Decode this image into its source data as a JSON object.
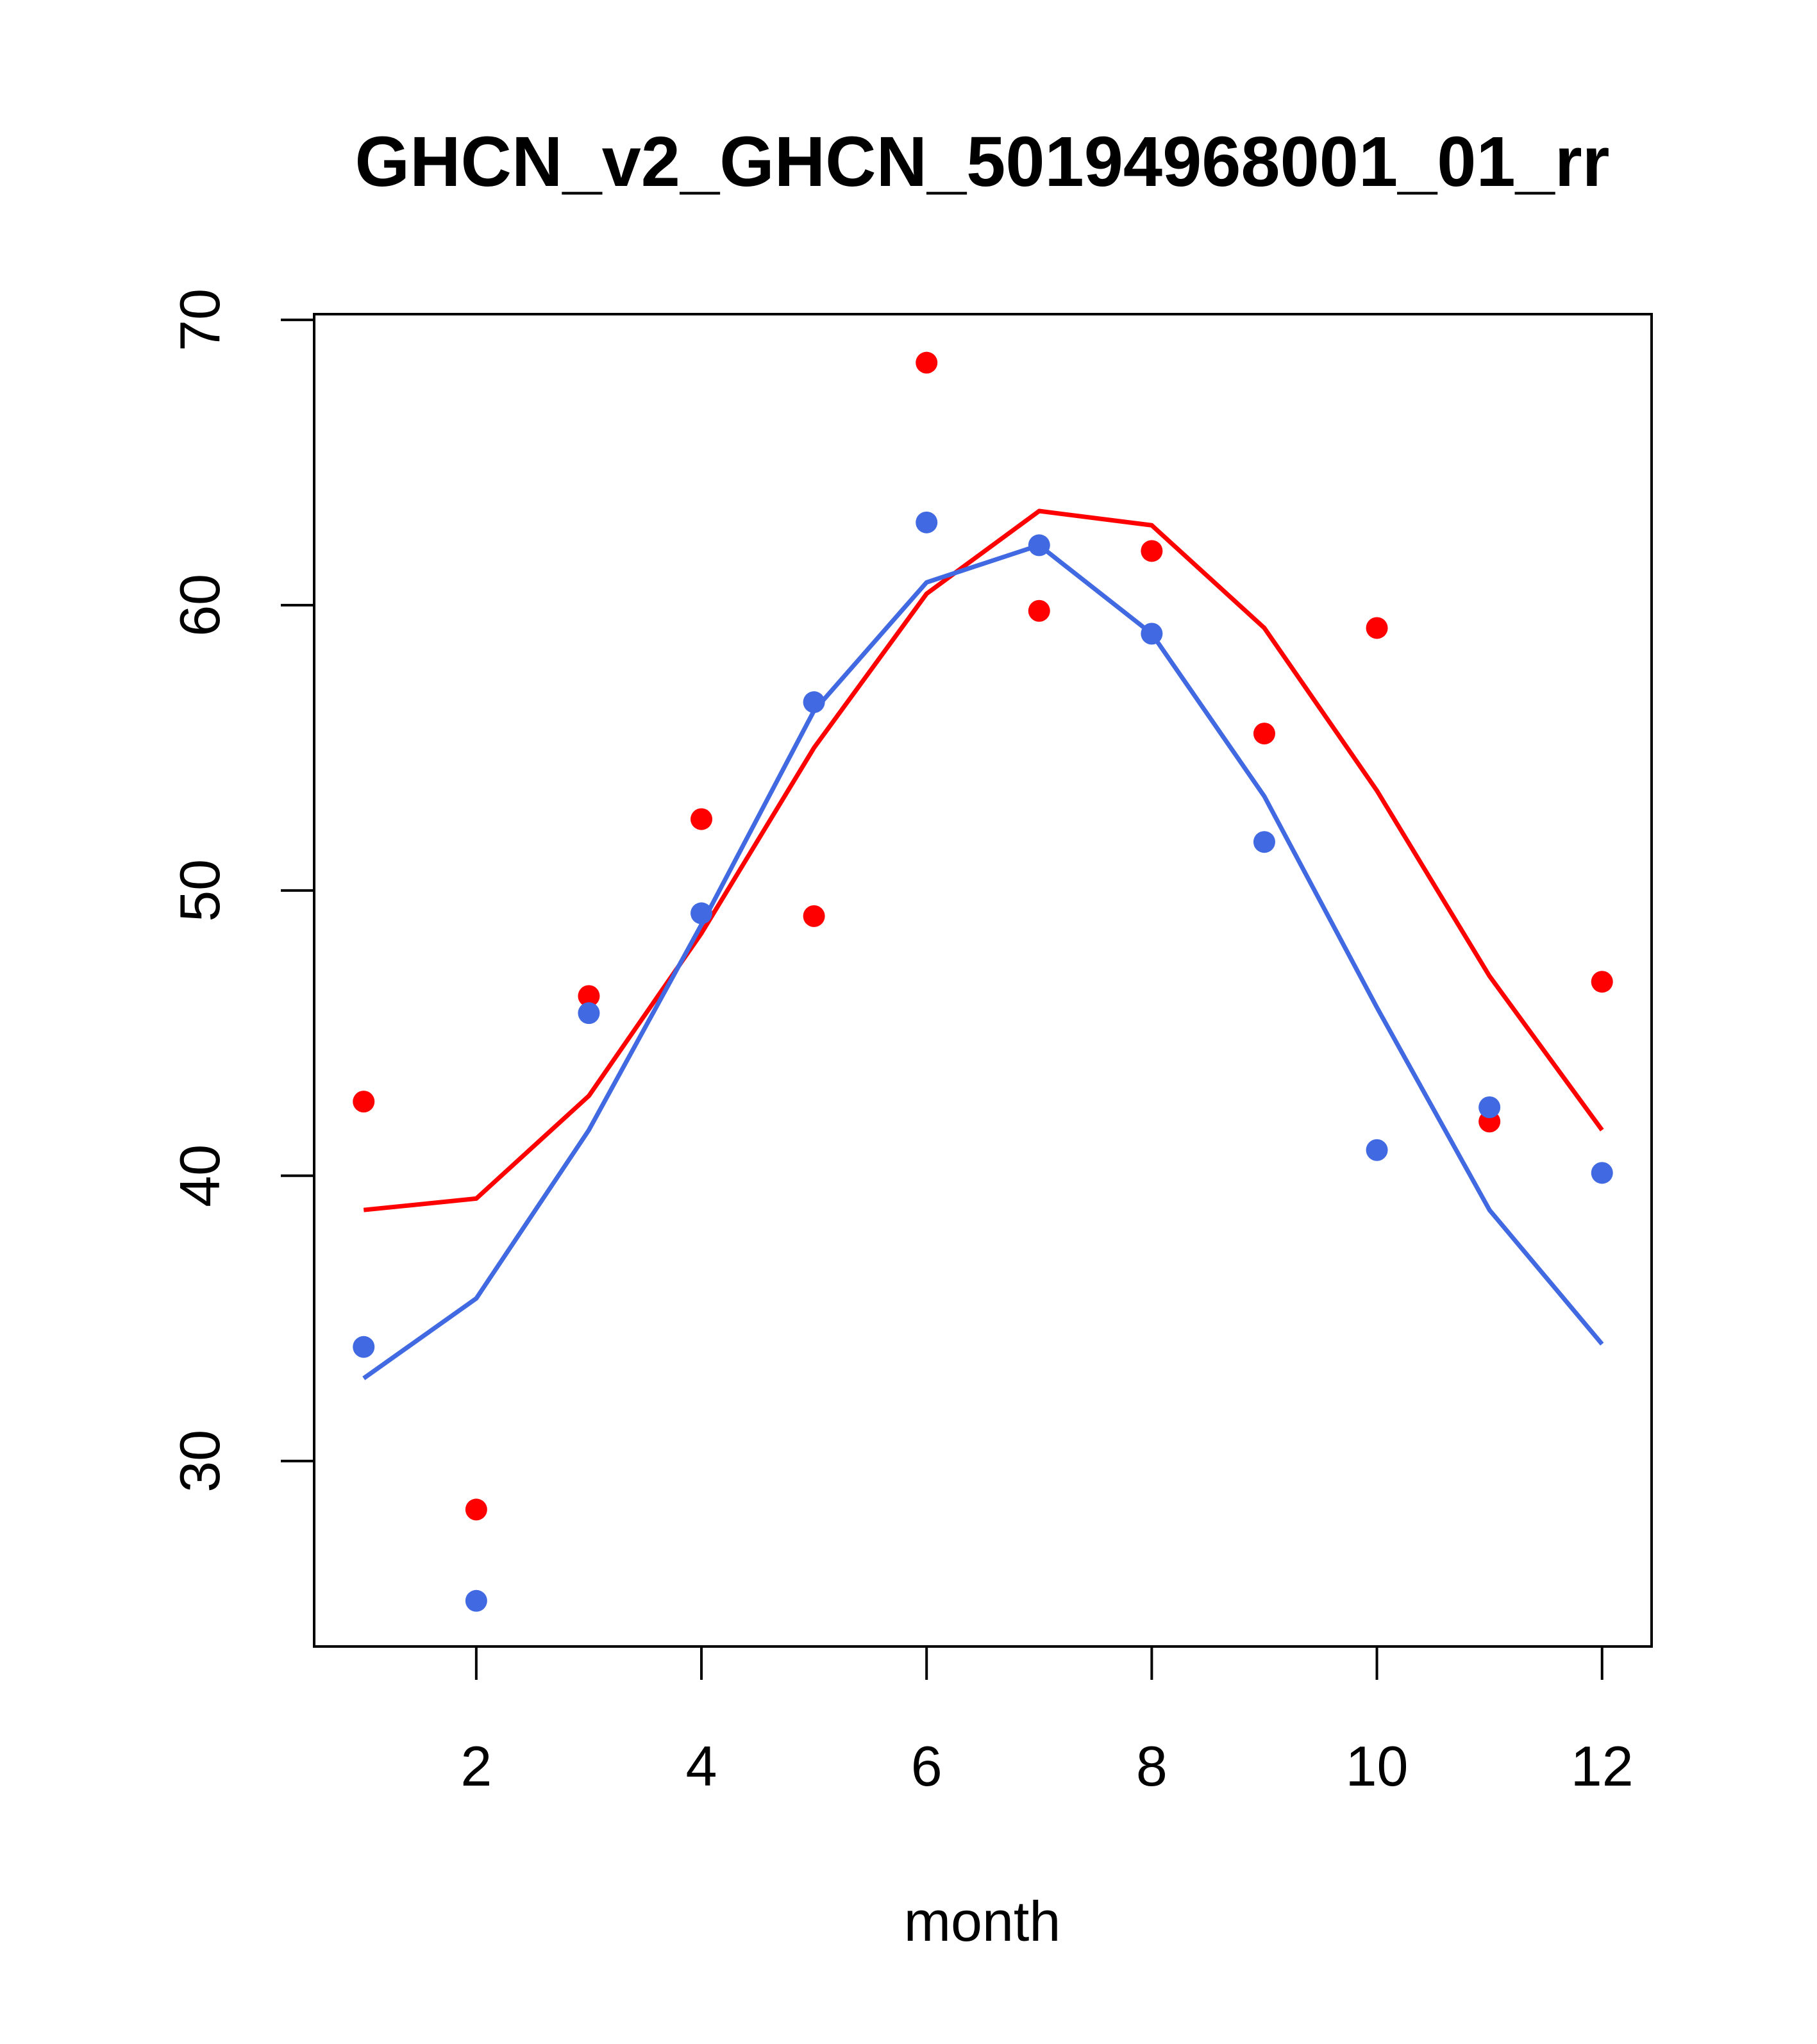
{
  "chart_data": {
    "type": "scatter",
    "title": "GHCN_v2_GHCN_50194968001_01_rr",
    "xlabel": "month",
    "ylabel": "",
    "xlim": [
      0.56,
      12.44
    ],
    "ylim": [
      23.5,
      70.2
    ],
    "x_ticks": [
      2,
      4,
      6,
      8,
      10,
      12
    ],
    "y_ticks": [
      30,
      40,
      50,
      60,
      70
    ],
    "grid": false,
    "legend": "none",
    "x": [
      1,
      2,
      3,
      4,
      5,
      6,
      7,
      8,
      9,
      10,
      11,
      12
    ],
    "series": [
      {
        "color": "#ff0000",
        "points": [
          42.6,
          28.3,
          46.3,
          52.5,
          49.1,
          68.5,
          59.8,
          61.9,
          55.5,
          59.2,
          41.9,
          46.8
        ],
        "line": [
          38.8,
          39.2,
          42.8,
          48.5,
          55.0,
          60.4,
          63.3,
          62.8,
          59.2,
          53.5,
          47.0,
          41.6
        ]
      },
      {
        "color": "#4169e1",
        "points": [
          34.0,
          25.1,
          45.7,
          49.2,
          56.6,
          62.9,
          62.1,
          59.0,
          51.7,
          40.9,
          42.4,
          40.1
        ],
        "line": [
          32.9,
          35.7,
          41.6,
          48.8,
          56.3,
          60.8,
          62.1,
          59.0,
          53.3,
          45.9,
          38.8,
          34.1
        ]
      }
    ]
  }
}
